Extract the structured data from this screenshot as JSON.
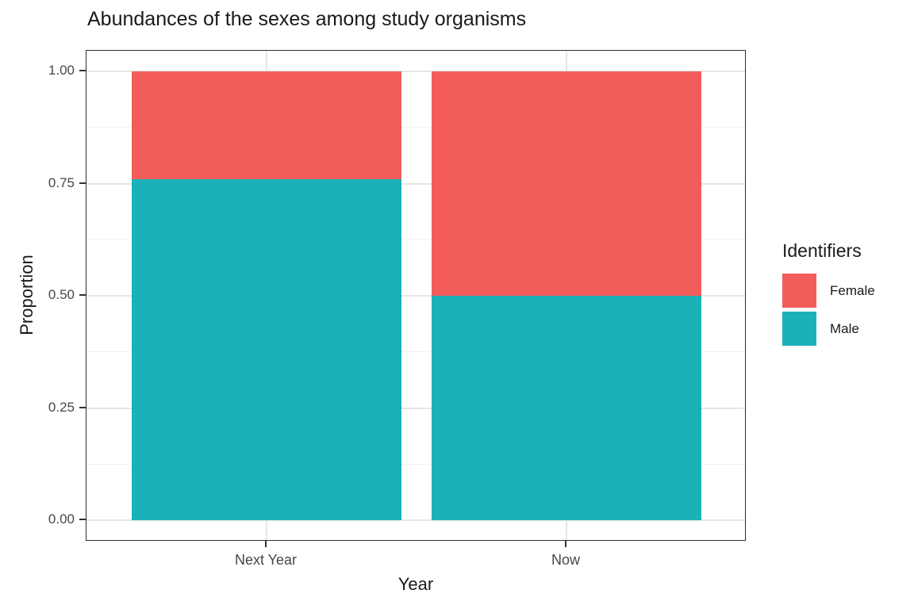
{
  "title": "Abundances of the sexes among study organisms",
  "x_axis": {
    "label": "Year",
    "categories": [
      "Next Year",
      "Now"
    ]
  },
  "y_axis": {
    "label": "Proportion",
    "tick_labels": [
      "0.00",
      "0.25",
      "0.50",
      "0.75",
      "1.00"
    ],
    "tick_values": [
      0,
      0.25,
      0.5,
      0.75,
      1.0
    ]
  },
  "legend": {
    "title": "Identifiers",
    "items": [
      {
        "label": "Female",
        "color": "#F25D5B"
      },
      {
        "label": "Male",
        "color": "#1AB2B8"
      }
    ]
  },
  "colors": {
    "female": "#F25D5B",
    "male": "#1AB2B8",
    "grid_major": "#E6E6E6",
    "grid_minor": "#F1F1F1",
    "panel_border": "#2E2E2E",
    "tick_text": "#474747"
  },
  "chart_data": {
    "type": "bar",
    "stacked": true,
    "categories": [
      "Next Year",
      "Now"
    ],
    "series": [
      {
        "name": "Male",
        "color": "#1AB2B8",
        "values": [
          0.76,
          0.5
        ]
      },
      {
        "name": "Female",
        "color": "#F25D5B",
        "values": [
          0.24,
          0.5
        ]
      }
    ],
    "title": "Abundances of the sexes among study organisms",
    "xlabel": "Year",
    "ylabel": "Proportion",
    "ylim": [
      0,
      1
    ],
    "y_major_ticks": [
      0,
      0.25,
      0.5,
      0.75,
      1.0
    ],
    "y_minor_ticks": [
      0.125,
      0.375,
      0.625,
      0.875
    ],
    "grid": true,
    "legend_position": "right",
    "legend_title": "Identifiers"
  }
}
